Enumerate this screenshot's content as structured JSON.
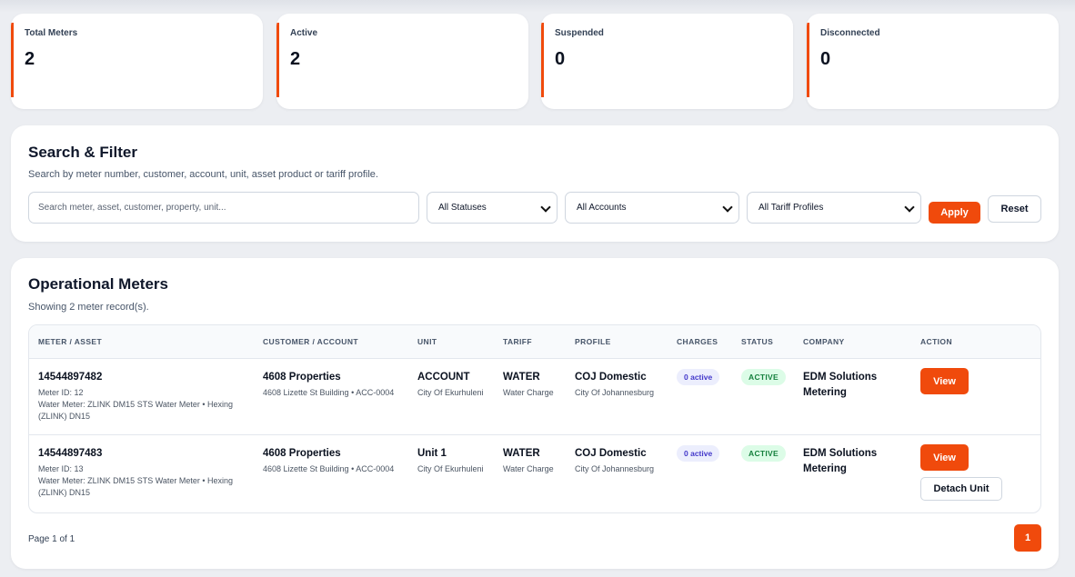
{
  "stats": [
    {
      "label": "Total Meters",
      "value": "2"
    },
    {
      "label": "Active",
      "value": "2"
    },
    {
      "label": "Suspended",
      "value": "0"
    },
    {
      "label": "Disconnected",
      "value": "0"
    }
  ],
  "filter": {
    "title": "Search & Filter",
    "subtitle": "Search by meter number, customer, account, unit, asset product or tariff profile.",
    "search_placeholder": "Search meter, asset, customer, property, unit...",
    "status_select": "All Statuses",
    "account_select": "All Accounts",
    "tariff_select": "All Tariff Profiles",
    "apply_label": "Apply",
    "reset_label": "Reset"
  },
  "meters": {
    "title": "Operational Meters",
    "subtitle": "Showing 2 meter record(s).",
    "columns": [
      "METER / ASSET",
      "CUSTOMER / ACCOUNT",
      "UNIT",
      "TARIFF",
      "PROFILE",
      "CHARGES",
      "STATUS",
      "COMPANY",
      "ACTION"
    ],
    "rows": [
      {
        "meter_number": "14544897482",
        "meter_id": "Meter ID: 12",
        "meter_desc": "Water Meter: ZLINK DM15 STS Water Meter • Hexing (ZLINK) DN15",
        "customer": "4608 Properties",
        "account": "4608 Lizette St Building • ACC-0004",
        "unit": "ACCOUNT",
        "unit_city": "City Of Ekurhuleni",
        "tariff": "WATER",
        "tariff_sub": "Water Charge",
        "profile": "COJ Domestic",
        "profile_sub": "City Of Johannesburg",
        "charges": "0 active",
        "status": "ACTIVE",
        "company": "EDM Solutions Metering",
        "view_label": "View"
      },
      {
        "meter_number": "14544897483",
        "meter_id": "Meter ID: 13",
        "meter_desc": "Water Meter: ZLINK DM15 STS Water Meter • Hexing (ZLINK) DN15",
        "customer": "4608 Properties",
        "account": "4608 Lizette St Building • ACC-0004",
        "unit": "Unit 1",
        "unit_city": "City Of Ekurhuleni",
        "tariff": "WATER",
        "tariff_sub": "Water Charge",
        "profile": "COJ Domestic",
        "profile_sub": "City Of Johannesburg",
        "charges": "0 active",
        "status": "ACTIVE",
        "company": "EDM Solutions Metering",
        "view_label": "View",
        "detach_label": "Detach Unit"
      }
    ],
    "page_info": "Page 1 of 1",
    "current_page": "1"
  },
  "colors": {
    "accent": "#f04a0c",
    "active_bg": "#dcfce7",
    "active_text": "#15803d",
    "charges_bg": "#eceefd",
    "charges_text": "#4338ca"
  }
}
